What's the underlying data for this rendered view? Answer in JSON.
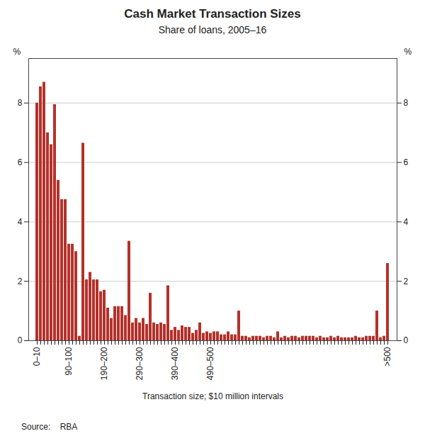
{
  "chart_data": {
    "type": "bar",
    "title": "Cash Market Transaction Sizes",
    "subtitle": "Share of loans, 2005–16",
    "xlabel": "Transaction size; $10 million intervals",
    "ylabel": "%",
    "y2label": "%",
    "source": "Source:    RBA",
    "color": "#b5312a",
    "categories": [
      "0–10",
      null,
      null,
      null,
      null,
      null,
      null,
      null,
      null,
      "90–100",
      null,
      null,
      null,
      null,
      null,
      null,
      null,
      null,
      null,
      "190–200",
      null,
      null,
      null,
      null,
      null,
      null,
      null,
      null,
      null,
      "290–300",
      null,
      null,
      null,
      null,
      null,
      null,
      null,
      null,
      null,
      "390–400",
      null,
      null,
      null,
      null,
      null,
      null,
      null,
      null,
      null,
      "490–500",
      null,
      null,
      null,
      null,
      null,
      null,
      null,
      null,
      null,
      null,
      null,
      null,
      null,
      null,
      null,
      null,
      null,
      null,
      null,
      null,
      null,
      null,
      null,
      null,
      null,
      null,
      null,
      null,
      null,
      null,
      null,
      null,
      null,
      null,
      null,
      null,
      null,
      null,
      null,
      null,
      null,
      null,
      null,
      null,
      null,
      null,
      null,
      null,
      null,
      ">500"
    ],
    "values": [
      8.0,
      8.55,
      8.7,
      7.0,
      6.6,
      7.95,
      5.4,
      4.75,
      4.75,
      3.25,
      3.25,
      3.0,
      0.15,
      6.65,
      2.05,
      2.3,
      2.05,
      2.05,
      1.65,
      1.7,
      1.1,
      0.75,
      1.15,
      1.15,
      1.15,
      0.85,
      3.35,
      0.6,
      0.75,
      0.6,
      0.75,
      0.55,
      1.6,
      0.6,
      0.55,
      0.6,
      0.55,
      1.85,
      0.35,
      0.45,
      0.35,
      0.5,
      0.45,
      0.45,
      0.25,
      0.35,
      0.6,
      0.25,
      0.3,
      0.25,
      0.3,
      0.3,
      0.2,
      0.2,
      0.3,
      0.2,
      0.2,
      1.0,
      0.15,
      0.15,
      0.1,
      0.15,
      0.15,
      0.15,
      0.1,
      0.15,
      0.15,
      0.1,
      0.3,
      0.1,
      0.15,
      0.1,
      0.15,
      0.15,
      0.1,
      0.15,
      0.15,
      0.15,
      0.15,
      0.1,
      0.15,
      0.1,
      0.1,
      0.15,
      0.1,
      0.15,
      0.1,
      0.1,
      0.1,
      0.1,
      0.15,
      0.1,
      0.1,
      0.15,
      0.15,
      0.15,
      1.0,
      0.1,
      0.15,
      2.6
    ],
    "ylim": [
      0,
      9.5
    ],
    "yticks": [
      0,
      2,
      4,
      6,
      8
    ],
    "y2lim": [
      0,
      9.5
    ],
    "y2ticks": [
      0,
      2,
      4,
      6,
      8
    ],
    "grid": true
  }
}
